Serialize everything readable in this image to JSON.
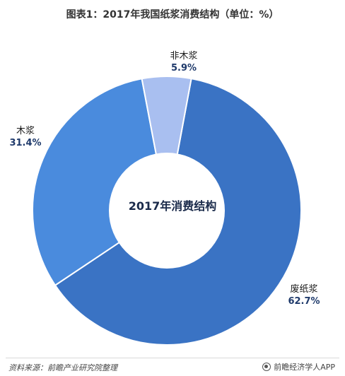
{
  "title": "图表1：2017年我国纸浆消费结构（单位：%）",
  "chart_data": {
    "type": "pie",
    "variant": "donut",
    "center_label": "2017年消费结构",
    "slices": [
      {
        "name": "废纸浆",
        "value": 62.7,
        "value_label": "62.7%",
        "color": "#3a73c4"
      },
      {
        "name": "木浆",
        "value": 31.4,
        "value_label": "31.4%",
        "color": "#4a8bdd"
      },
      {
        "name": "非木浆",
        "value": 5.9,
        "value_label": "5.9%",
        "color": "#a9bff0"
      }
    ]
  },
  "footer": {
    "source": "资料来源：前瞻产业研究院整理",
    "brand": "前瞻经济学人APP"
  },
  "watermark": "前瞻产业研究院"
}
